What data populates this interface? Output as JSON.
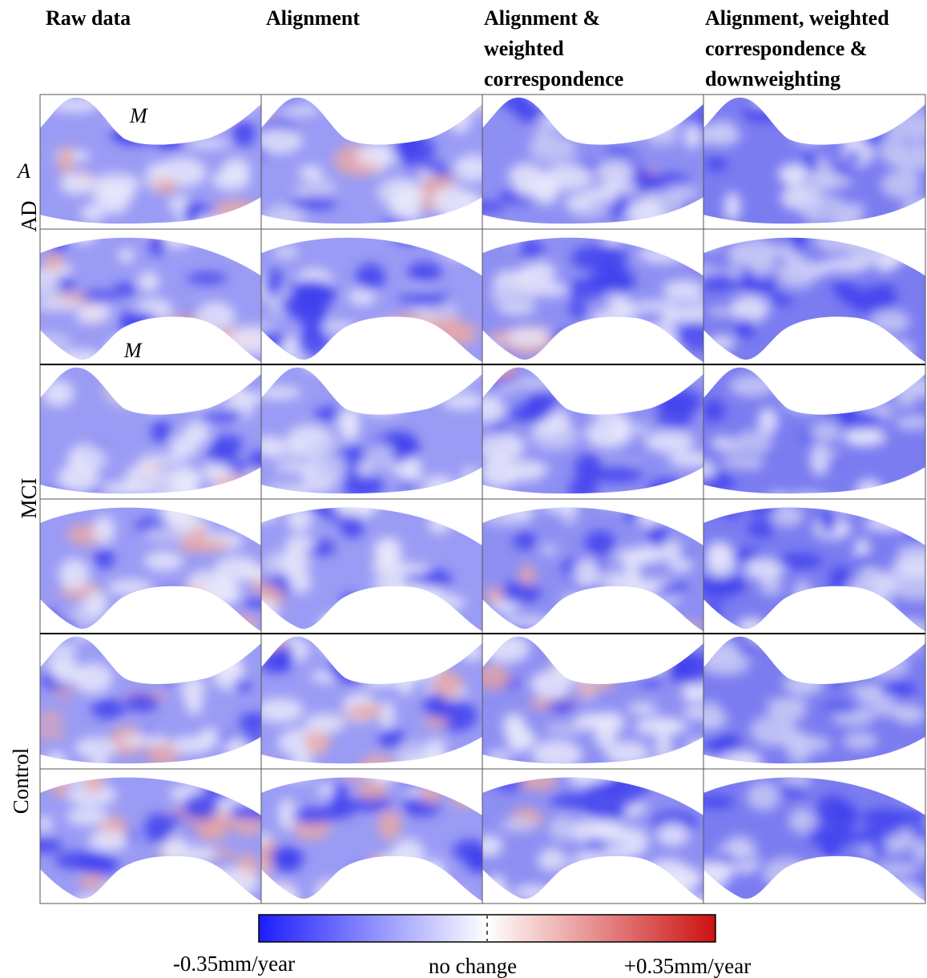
{
  "column_headers": [
    [
      "Raw data"
    ],
    [
      "Alignment"
    ],
    [
      "Alignment &",
      "weighted",
      "correspondence"
    ],
    [
      "Alignment, weighted",
      "correspondence &",
      "downweighting"
    ]
  ],
  "row_labels": [
    "AD",
    "MCI",
    "Control"
  ],
  "annotations": {
    "panel_label": "A",
    "marker_top": "M",
    "marker_bottom": "M"
  },
  "colorbar": {
    "min_label": "-0.35mm/year",
    "mid_label": "no change",
    "max_label": "+0.35mm/year"
  }
}
